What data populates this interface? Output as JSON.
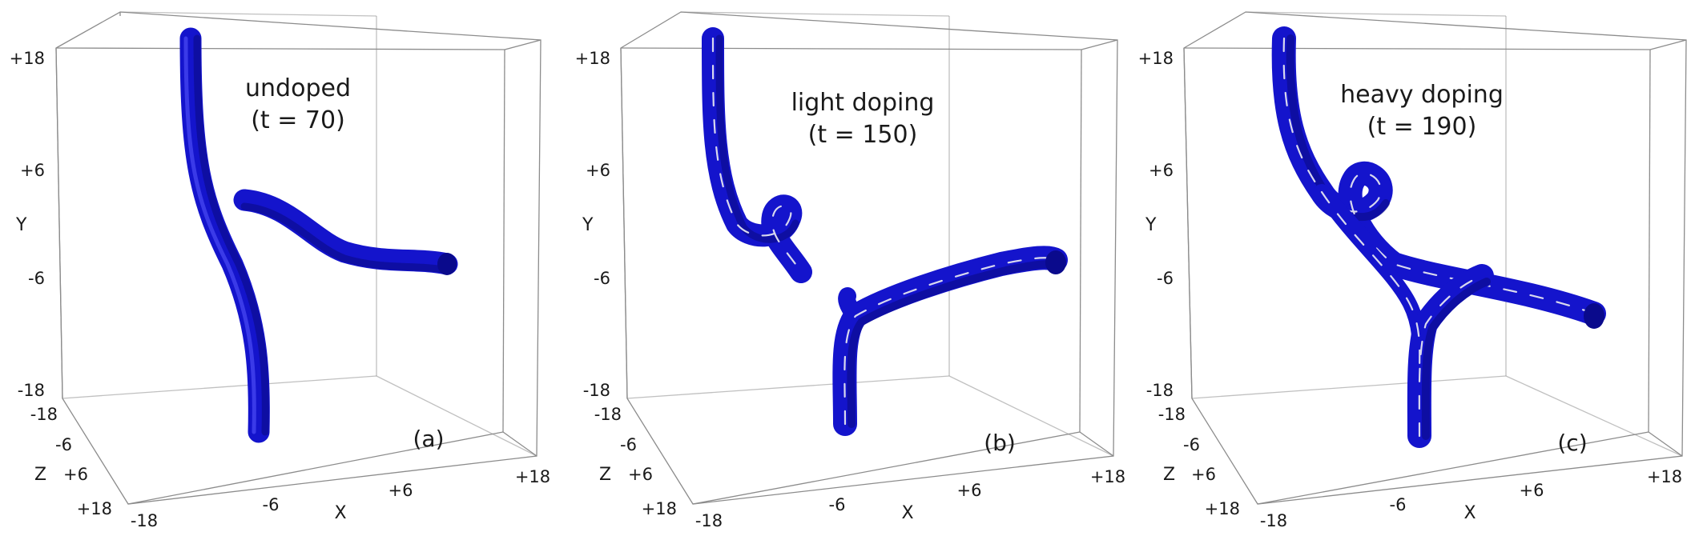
{
  "panels": [
    {
      "id": "a",
      "title_line1": "undoped",
      "title_line2": "(t = 70)",
      "tag": "(a)",
      "y_axis": {
        "name": "Y",
        "ticks": [
          "+18",
          "+6",
          "-6",
          "-18"
        ]
      },
      "z_axis": {
        "name": "Z",
        "ticks": [
          "-18",
          "-6",
          "+6",
          "+18"
        ]
      },
      "x_axis": {
        "name": "X",
        "ticks": [
          "-18",
          "-6",
          "+6",
          "+18"
        ]
      }
    },
    {
      "id": "b",
      "title_line1": "light doping",
      "title_line2": "(t = 150)",
      "tag": "(b)",
      "y_axis": {
        "name": "Y",
        "ticks": [
          "+18",
          "+6",
          "-6",
          "-18"
        ]
      },
      "z_axis": {
        "name": "Z",
        "ticks": [
          "-18",
          "-6",
          "+6",
          "+18"
        ]
      },
      "x_axis": {
        "name": "X",
        "ticks": [
          "-18",
          "-6",
          "+6",
          "+18"
        ]
      }
    },
    {
      "id": "c",
      "title_line1": "heavy doping",
      "title_line2": "(t = 190)",
      "tag": "(c)",
      "y_axis": {
        "name": "Y",
        "ticks": [
          "+18",
          "+6",
          "-6",
          "-18"
        ]
      },
      "z_axis": {
        "name": "Z",
        "ticks": [
          "-18",
          "-6",
          "+6",
          "+18"
        ]
      },
      "x_axis": {
        "name": "X",
        "ticks": [
          "-18",
          "-6",
          "+6",
          "+18"
        ]
      }
    }
  ],
  "colors": {
    "tube": "#1414cc",
    "core_line": "#d8d8ee",
    "box": "#8c8c8c"
  }
}
